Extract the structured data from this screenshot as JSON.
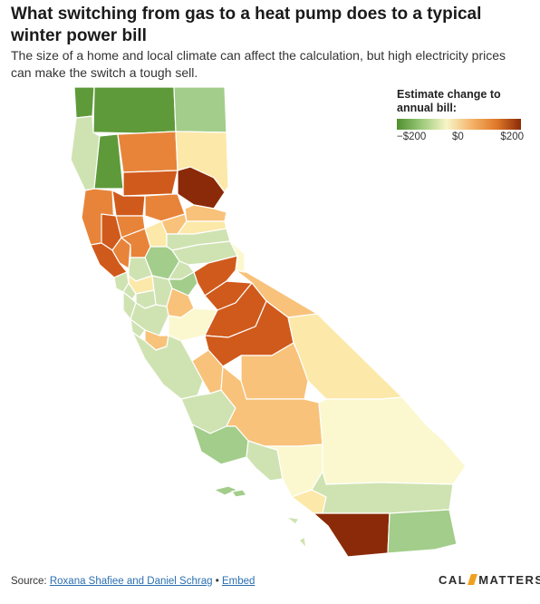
{
  "header": {
    "title": "What switching from gas to a heat pump does to a typical winter power bill",
    "subtitle": "The size of a home and local climate can affect the calculation, but high electricity prices can make the switch a tough sell."
  },
  "legend": {
    "title": "Estimate change to annual bill:",
    "ticks": [
      "−$200",
      "$0",
      "$200"
    ],
    "colors": [
      "#4f8f2e",
      "#9cca7a",
      "#f7f5c8",
      "#f5b46a",
      "#e07a2a",
      "#8a2a08"
    ]
  },
  "map": {
    "colors": {
      "strong_green": "#5f9a3a",
      "green": "#a3cd8a",
      "light_green": "#cfe3b2",
      "pale_yellow": "#fbf8cf",
      "yellow": "#fce8a8",
      "light_orange": "#f8c27a",
      "orange": "#e8843a",
      "dark_orange": "#d05a1c",
      "dark_red": "#8a2a08"
    }
  },
  "footer": {
    "source_label": "Source:",
    "source_link": "Roxana Shafiee and Daniel Schrag",
    "separator": "•",
    "embed_link": "Embed"
  },
  "logo": {
    "left": "CAL",
    "right": "MATTERS"
  }
}
